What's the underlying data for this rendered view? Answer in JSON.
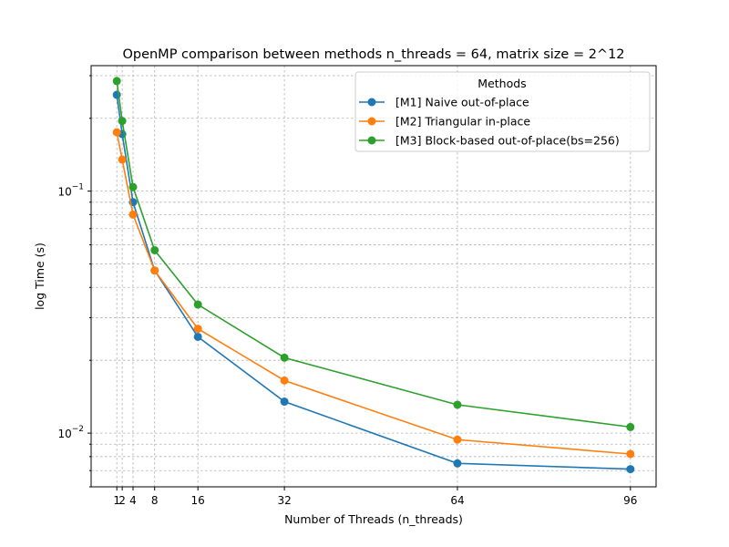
{
  "chart_data": {
    "type": "line",
    "title": "OpenMP comparison between methods n_threads = 64, matrix size = 2^12",
    "xlabel": "Number of Threads (n_threads)",
    "ylabel": "log Time (s)",
    "x": [
      1,
      2,
      4,
      8,
      16,
      32,
      64,
      96
    ],
    "x_tick_labels": [
      "1",
      "2",
      "4",
      "8",
      "16",
      "32",
      "64",
      "96"
    ],
    "y_scale": "log",
    "y_tick_labels": [
      {
        "base": "10",
        "exp": "−1"
      },
      {
        "base": "10",
        "exp": "−2"
      }
    ],
    "xlim": [
      -3.75,
      100.75
    ],
    "ylim": [
      0.006,
      0.33
    ],
    "grid": true,
    "legend": {
      "title": "Methods",
      "position": "top-right"
    },
    "series": [
      {
        "name": "[M1] Naive out-of-place",
        "color": "#1f77b4",
        "values": [
          0.25,
          0.172,
          0.09,
          0.047,
          0.025,
          0.0135,
          0.0075,
          0.0071
        ]
      },
      {
        "name": "[M2] Triangular in-place",
        "color": "#ff7f0e",
        "values": [
          0.175,
          0.135,
          0.08,
          0.047,
          0.027,
          0.0165,
          0.0094,
          0.0082
        ]
      },
      {
        "name": "[M3] Block-based out-of-place(bs=256)",
        "color": "#2ca02c",
        "values": [
          0.285,
          0.195,
          0.104,
          0.057,
          0.034,
          0.0205,
          0.0131,
          0.0106
        ]
      }
    ]
  }
}
